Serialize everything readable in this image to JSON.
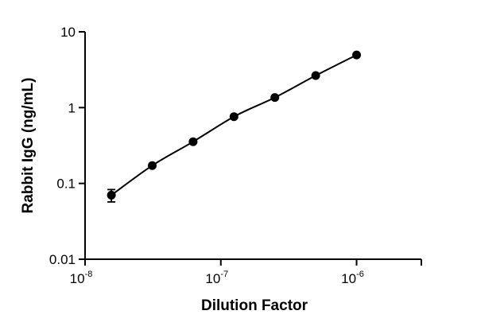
{
  "chart_data": {
    "type": "scatter",
    "xlabel": "Dilution  Factor",
    "ylabel": "Rabbit IgG (ng/mL)",
    "x_scale": "log",
    "y_scale": "log",
    "xlim": [
      1e-08,
      3e-06
    ],
    "ylim": [
      0.01,
      10
    ],
    "x_ticks": [
      {
        "value": 1e-08,
        "base": "10",
        "exp": "-8"
      },
      {
        "value": 1e-07,
        "base": "10",
        "exp": "-7"
      },
      {
        "value": 1e-06,
        "base": "10",
        "exp": "-6"
      }
    ],
    "y_ticks": [
      {
        "value": 0.01,
        "label": "0.01"
      },
      {
        "value": 0.1,
        "label": "0.1"
      },
      {
        "value": 1,
        "label": "1"
      },
      {
        "value": 10,
        "label": "10"
      }
    ],
    "grid": false,
    "fit_curve": true,
    "points": [
      {
        "x": 1.5625e-08,
        "y": 0.07,
        "err": 0.013
      },
      {
        "x": 3.125e-08,
        "y": 0.172
      },
      {
        "x": 6.25e-08,
        "y": 0.355
      },
      {
        "x": 1.25e-07,
        "y": 0.76
      },
      {
        "x": 2.5e-07,
        "y": 1.36
      },
      {
        "x": 5e-07,
        "y": 2.65
      },
      {
        "x": 1e-06,
        "y": 4.95
      }
    ]
  }
}
